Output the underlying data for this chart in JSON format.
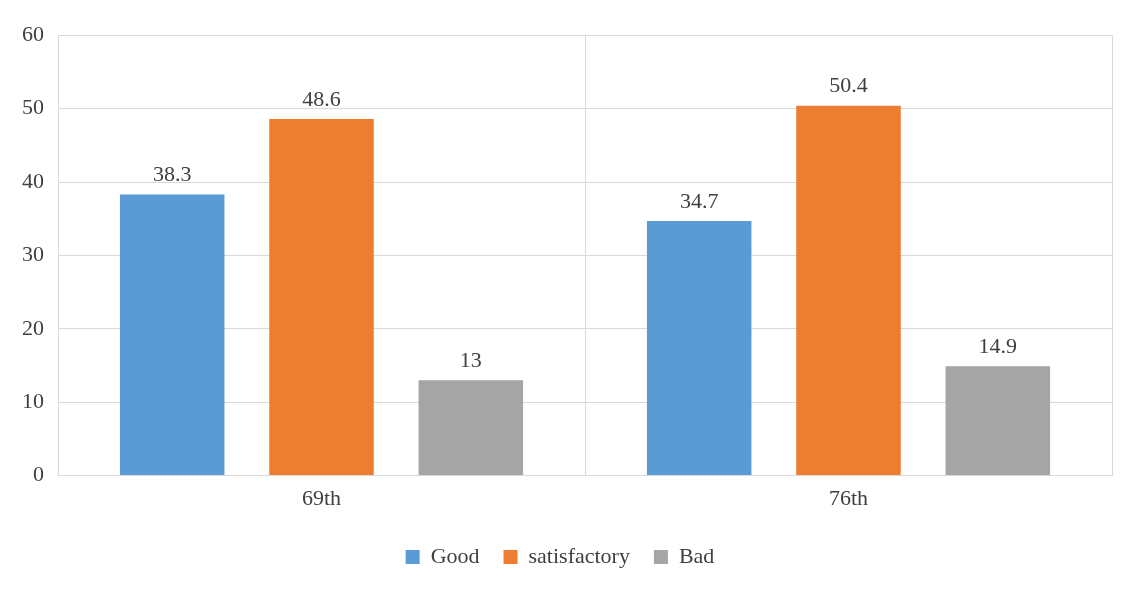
{
  "chart_data": {
    "type": "bar",
    "categories": [
      "69th",
      "76th"
    ],
    "series": [
      {
        "name": "Good",
        "color": "#5b9bd5",
        "values": [
          38.3,
          34.7
        ]
      },
      {
        "name": "satisfactory",
        "color": "#ed7d31",
        "values": [
          48.6,
          50.4
        ]
      },
      {
        "name": "Bad",
        "color": "#a5a5a5",
        "values": [
          13,
          14.9
        ]
      }
    ],
    "ylim": [
      0,
      60
    ],
    "yticks": [
      0,
      10,
      20,
      30,
      40,
      50,
      60
    ],
    "grid": true,
    "legend": "bottom",
    "data_labels": true
  }
}
